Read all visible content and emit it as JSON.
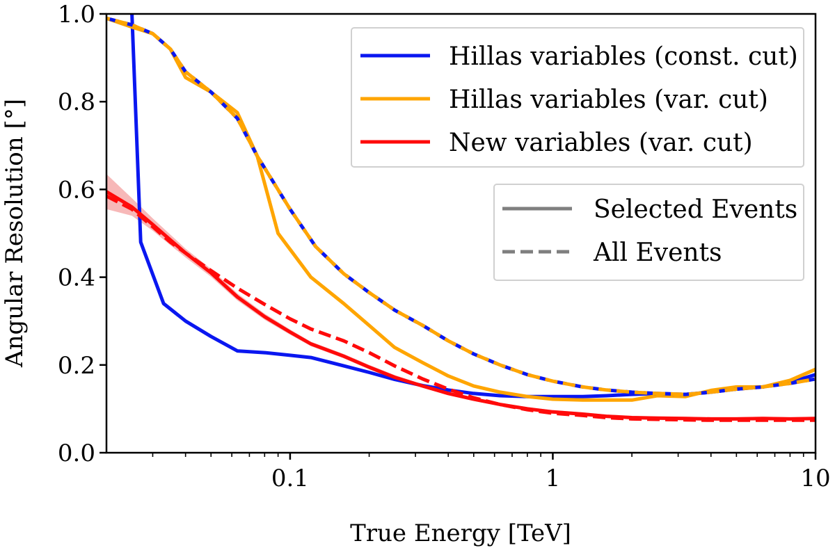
{
  "chart_data": {
    "type": "line",
    "xlabel": "True Energy [TeV]",
    "ylabel": "Angular Resolution [°]",
    "xscale": "log",
    "xlim": [
      0.02,
      10
    ],
    "ylim": [
      0.0,
      1.0
    ],
    "xticks": [
      0.1,
      1,
      10
    ],
    "xtick_labels": [
      "0.1",
      "1",
      "10"
    ],
    "yticks": [
      0.0,
      0.2,
      0.4,
      0.6,
      0.8,
      1.0
    ],
    "ytick_labels": [
      "0.0",
      "0.2",
      "0.4",
      "0.6",
      "0.8",
      "1.0"
    ],
    "series": [
      {
        "name": "Hillas variables (const. cut) – Selected Events",
        "method": "hillas-const",
        "style": "solid",
        "color": "#0a17f0",
        "x": [
          0.025,
          0.027,
          0.033,
          0.04,
          0.05,
          0.063,
          0.08,
          0.1,
          0.12,
          0.16,
          0.2,
          0.25,
          0.32,
          0.4,
          0.5,
          0.63,
          0.8,
          1.0,
          1.3,
          1.6,
          2.0,
          2.5,
          3.2,
          4.0,
          5.0,
          6.3,
          8.0,
          10.0
        ],
        "y": [
          1.0,
          0.48,
          0.34,
          0.3,
          0.265,
          0.232,
          0.228,
          0.222,
          0.217,
          0.198,
          0.183,
          0.167,
          0.153,
          0.143,
          0.135,
          0.13,
          0.128,
          0.128,
          0.128,
          0.13,
          0.133,
          0.135,
          0.133,
          0.138,
          0.145,
          0.15,
          0.16,
          0.178
        ]
      },
      {
        "name": "Hillas variables (const. cut) – All Events",
        "method": "hillas-const",
        "style": "dashed",
        "color": "#0a17f0",
        "x": [
          0.02,
          0.025,
          0.03,
          0.035,
          0.04,
          0.05,
          0.063,
          0.075,
          0.1,
          0.125,
          0.16,
          0.2,
          0.25,
          0.32,
          0.4,
          0.5,
          0.63,
          0.8,
          1.0,
          1.3,
          1.6,
          2.0,
          2.5,
          3.2,
          4.0,
          5.0,
          6.3,
          8.0,
          10.0
        ],
        "y": [
          0.99,
          0.975,
          0.955,
          0.92,
          0.868,
          0.822,
          0.762,
          0.676,
          0.555,
          0.47,
          0.408,
          0.365,
          0.325,
          0.29,
          0.255,
          0.225,
          0.2,
          0.178,
          0.163,
          0.15,
          0.143,
          0.138,
          0.135,
          0.133,
          0.138,
          0.145,
          0.15,
          0.158,
          0.168
        ]
      },
      {
        "name": "Hillas variables (var. cut) – Selected Events",
        "method": "hillas-var",
        "style": "solid",
        "color": "#ffa500",
        "x": [
          0.02,
          0.025,
          0.03,
          0.035,
          0.04,
          0.05,
          0.063,
          0.075,
          0.09,
          0.12,
          0.16,
          0.2,
          0.25,
          0.32,
          0.4,
          0.5,
          0.63,
          0.8,
          1.0,
          1.3,
          1.6,
          2.0,
          2.5,
          3.2,
          4.0,
          5.0,
          6.3,
          8.0,
          10.0
        ],
        "y": [
          0.99,
          0.97,
          0.955,
          0.92,
          0.855,
          0.822,
          0.775,
          0.676,
          0.5,
          0.4,
          0.34,
          0.29,
          0.24,
          0.205,
          0.175,
          0.152,
          0.138,
          0.128,
          0.122,
          0.12,
          0.12,
          0.12,
          0.13,
          0.128,
          0.142,
          0.15,
          0.15,
          0.165,
          0.19
        ]
      },
      {
        "name": "Hillas variables (var. cut) – All Events",
        "method": "hillas-var",
        "style": "dashed",
        "color": "#ffa500",
        "x": [
          0.02,
          0.025,
          0.03,
          0.035,
          0.04,
          0.05,
          0.063,
          0.075,
          0.1,
          0.125,
          0.16,
          0.2,
          0.25,
          0.32,
          0.4,
          0.5,
          0.63,
          0.8,
          1.0,
          1.3,
          1.6,
          2.0,
          2.5,
          3.2,
          4.0,
          5.0,
          6.3,
          8.0,
          10.0
        ],
        "y": [
          0.99,
          0.975,
          0.955,
          0.92,
          0.868,
          0.822,
          0.762,
          0.676,
          0.555,
          0.47,
          0.408,
          0.365,
          0.325,
          0.29,
          0.255,
          0.225,
          0.2,
          0.178,
          0.163,
          0.15,
          0.143,
          0.138,
          0.135,
          0.133,
          0.138,
          0.145,
          0.15,
          0.158,
          0.168
        ]
      },
      {
        "name": "New variables (var. cut) – Selected Events",
        "method": "new-var",
        "style": "solid",
        "color": "#ff0a0a",
        "band": true,
        "band_color": "#f4a0a0",
        "band_halfwidth": [
          0.04,
          0.02,
          0.014,
          0.012,
          0.01,
          0.009,
          0.008,
          0.007,
          0.006,
          0.005,
          0.005,
          0.005,
          0.005,
          0.004,
          0.004,
          0.004,
          0.004,
          0.004,
          0.004,
          0.004,
          0.004,
          0.004,
          0.004,
          0.004,
          0.004,
          0.004,
          0.004,
          0.004,
          0.004
        ],
        "x": [
          0.02,
          0.025,
          0.03,
          0.035,
          0.04,
          0.05,
          0.063,
          0.08,
          0.1,
          0.12,
          0.16,
          0.2,
          0.25,
          0.32,
          0.4,
          0.5,
          0.63,
          0.8,
          1.0,
          1.3,
          1.6,
          2.0,
          2.5,
          3.2,
          4.0,
          5.0,
          6.3,
          8.0,
          10.0
        ],
        "y": [
          0.595,
          0.56,
          0.52,
          0.485,
          0.455,
          0.41,
          0.355,
          0.31,
          0.275,
          0.248,
          0.22,
          0.195,
          0.172,
          0.152,
          0.135,
          0.122,
          0.11,
          0.1,
          0.093,
          0.088,
          0.083,
          0.08,
          0.079,
          0.078,
          0.077,
          0.077,
          0.078,
          0.077,
          0.078
        ]
      },
      {
        "name": "New variables (var. cut) – All Events",
        "method": "new-var",
        "style": "dashed",
        "color": "#ff0a0a",
        "x": [
          0.02,
          0.025,
          0.03,
          0.035,
          0.04,
          0.05,
          0.063,
          0.08,
          0.1,
          0.12,
          0.16,
          0.2,
          0.25,
          0.32,
          0.4,
          0.5,
          0.63,
          0.8,
          1.0,
          1.3,
          1.6,
          2.0,
          2.5,
          3.2,
          4.0,
          5.0,
          6.3,
          8.0,
          10.0
        ],
        "y": [
          0.585,
          0.555,
          0.515,
          0.48,
          0.455,
          0.415,
          0.375,
          0.338,
          0.305,
          0.282,
          0.255,
          0.228,
          0.198,
          0.168,
          0.145,
          0.125,
          0.11,
          0.098,
          0.09,
          0.085,
          0.08,
          0.077,
          0.076,
          0.075,
          0.074,
          0.074,
          0.074,
          0.074,
          0.074
        ]
      }
    ],
    "legend_methods": {
      "position": "top-right",
      "entries": [
        {
          "label": "Hillas variables (const. cut)",
          "color": "#0a17f0"
        },
        {
          "label": "Hillas variables (var. cut)",
          "color": "#ffa500"
        },
        {
          "label": "New variables (var. cut)",
          "color": "#ff0a0a"
        }
      ]
    },
    "legend_styles": {
      "position": "right",
      "color": "#7f7f7f",
      "entries": [
        {
          "label": "Selected Events",
          "style": "solid"
        },
        {
          "label": "All Events",
          "style": "dashed"
        }
      ]
    }
  }
}
